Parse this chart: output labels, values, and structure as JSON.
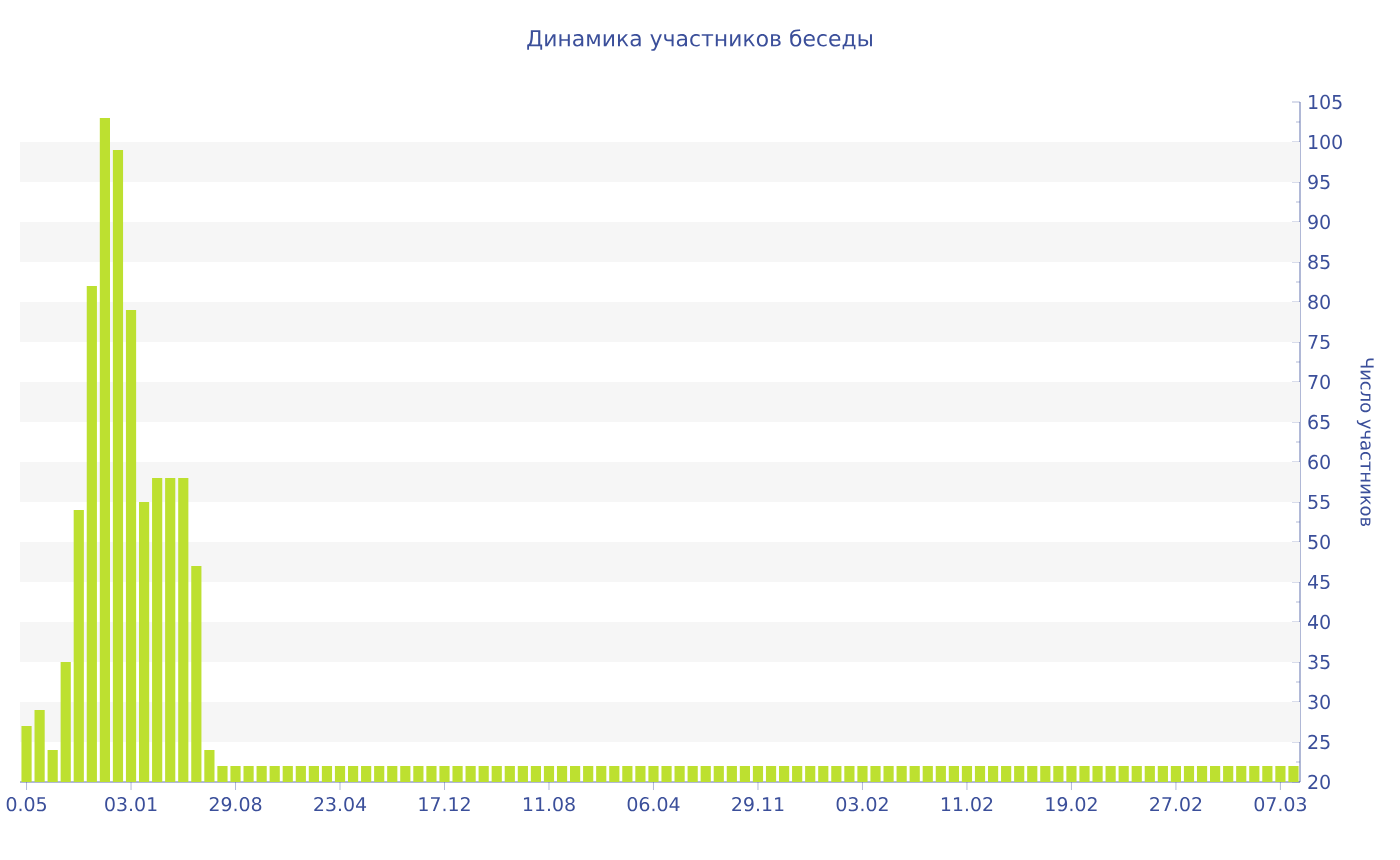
{
  "chart_data": {
    "type": "bar",
    "title": "Динамика участников беседы",
    "ylabel": "Число участников",
    "categories": [
      "0.05",
      null,
      null,
      null,
      null,
      null,
      null,
      null,
      "03.01",
      null,
      null,
      null,
      null,
      null,
      null,
      null,
      "29.08",
      null,
      null,
      null,
      null,
      null,
      null,
      null,
      "23.04",
      null,
      null,
      null,
      null,
      null,
      null,
      null,
      "17.12",
      null,
      null,
      null,
      null,
      null,
      null,
      null,
      "11.08",
      null,
      null,
      null,
      null,
      null,
      null,
      null,
      "06.04",
      null,
      null,
      null,
      null,
      null,
      null,
      null,
      "29.11",
      null,
      null,
      null,
      null,
      null,
      null,
      null,
      "03.02",
      null,
      null,
      null,
      null,
      null,
      null,
      null,
      "11.02",
      null,
      null,
      null,
      null,
      null,
      null,
      null,
      "19.02",
      null,
      null,
      null,
      null,
      null,
      null,
      null,
      "27.02",
      null,
      null,
      null,
      null,
      null,
      null,
      null,
      "07.03",
      null
    ],
    "values": [
      27,
      29,
      24,
      35,
      54,
      82,
      103,
      99,
      79,
      55,
      58,
      58,
      58,
      47,
      24,
      22,
      22,
      22,
      22,
      22,
      22,
      22,
      22,
      22,
      22,
      22,
      22,
      22,
      22,
      22,
      22,
      22,
      22,
      22,
      22,
      22,
      22,
      22,
      22,
      22,
      22,
      22,
      22,
      22,
      22,
      22,
      22,
      22,
      22,
      22,
      22,
      22,
      22,
      22,
      22,
      22,
      22,
      22,
      22,
      22,
      22,
      22,
      22,
      22,
      22,
      22,
      22,
      22,
      22,
      22,
      22,
      22,
      22,
      22,
      22,
      22,
      22,
      22,
      22,
      22,
      22,
      22,
      22,
      22,
      22,
      22,
      22,
      22,
      22,
      22,
      22,
      22,
      22,
      22,
      22,
      22,
      22,
      22
    ],
    "color": "#bde030",
    "ylim": [
      20,
      105
    ],
    "yticks": [
      20,
      25,
      30,
      35,
      40,
      45,
      50,
      55,
      60,
      65,
      70,
      75,
      80,
      85,
      90,
      95,
      100,
      105
    ]
  }
}
